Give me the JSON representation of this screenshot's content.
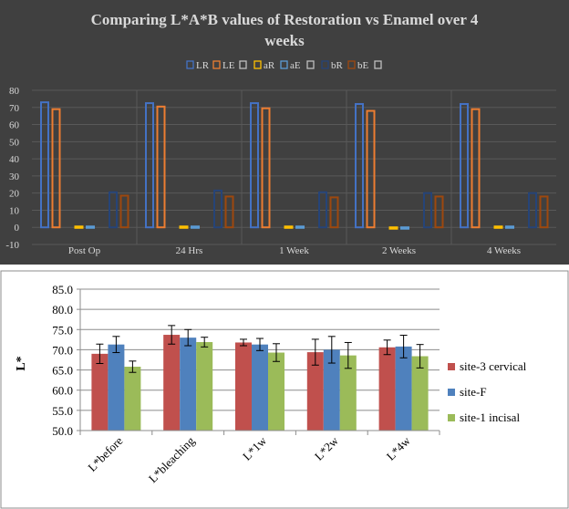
{
  "chart_data": [
    {
      "type": "bar",
      "title": "Comparing L*A*B values of Restoration vs Enamel over 4 weeks",
      "categories": [
        "Post Op",
        "24 Hrs",
        "1 Week",
        "2 Weeks",
        "4 Weeks"
      ],
      "ylim": [
        -10,
        80
      ],
      "yticks": [
        80,
        70,
        60,
        50,
        40,
        30,
        20,
        10,
        0,
        -10
      ],
      "grid": true,
      "legend_position": "top",
      "legend": [
        "LR",
        "LE",
        "",
        "aR",
        "aE",
        "",
        "bR",
        "bE",
        ""
      ],
      "series": [
        {
          "name": "LR",
          "color": "#4472C4",
          "values": [
            73,
            72.5,
            72.5,
            72,
            72
          ]
        },
        {
          "name": "LE",
          "color": "#ED7D31",
          "values": [
            69,
            70.5,
            69.5,
            68,
            69
          ]
        },
        {
          "name": "aR",
          "color": "#FFC000",
          "values": [
            0.5,
            0.5,
            0.5,
            -0.5,
            0.5
          ]
        },
        {
          "name": "aE",
          "color": "#5B9BD5",
          "values": [
            0.5,
            0.5,
            0.5,
            0,
            0.5
          ]
        },
        {
          "name": "bR",
          "color": "#264478",
          "values": [
            20.5,
            21.5,
            20.5,
            20,
            20
          ]
        },
        {
          "name": "bE",
          "color": "#9E480E",
          "values": [
            18.5,
            18,
            17.5,
            18,
            18
          ]
        }
      ],
      "colors": {
        "background": "#404040",
        "plot_grid": "#595959",
        "text": "#d9d9d9"
      }
    },
    {
      "type": "bar",
      "title": "",
      "ylabel": "L*",
      "categories": [
        "L*before",
        "L*bleaching",
        "L*1w",
        "L*2w",
        "L*4w"
      ],
      "ylim": [
        50,
        85
      ],
      "yticks": [
        "85.0",
        "80.0",
        "75.0",
        "70.0",
        "65.0",
        "60.0",
        "55.0",
        "50.0"
      ],
      "grid": true,
      "legend_position": "right",
      "error_bars": true,
      "series": [
        {
          "name": "site-3 cervical",
          "color": "#C0504D",
          "values": [
            69.0,
            73.7,
            71.8,
            69.4,
            70.6
          ],
          "errors": [
            2.4,
            2.3,
            0.8,
            3.2,
            1.8
          ]
        },
        {
          "name": "site-F",
          "color": "#4F81BD",
          "values": [
            71.3,
            73.0,
            71.3,
            70.0,
            70.8
          ],
          "errors": [
            2.0,
            2.0,
            1.5,
            3.3,
            2.8
          ]
        },
        {
          "name": "site-1 incisal",
          "color": "#9BBB59",
          "values": [
            65.8,
            71.9,
            69.3,
            68.6,
            68.4
          ],
          "errors": [
            1.4,
            1.2,
            2.2,
            3.2,
            2.9
          ]
        }
      ]
    }
  ]
}
